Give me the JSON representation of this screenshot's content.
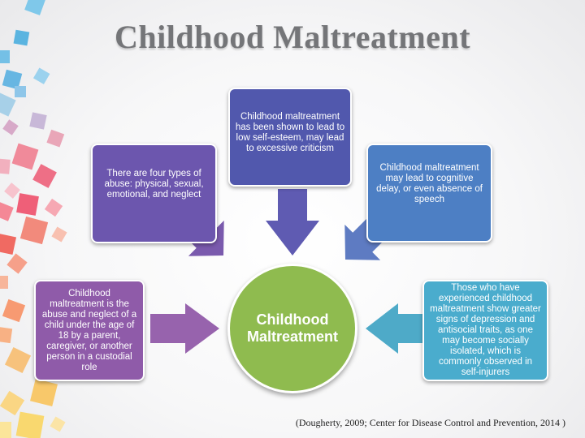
{
  "slide": {
    "title": "Childhood Maltreatment",
    "center_label": "Childhood Maltreatment",
    "boxes": [
      {
        "text": "Childhood maltreatment is the abuse and neglect of a child under the age of 18 by a parent, caregiver, or another person in a custodial role",
        "color": "#8f5ba9"
      },
      {
        "text": "There are four types of abuse: physical, sexual, emotional, and neglect",
        "color": "#6c56ae"
      },
      {
        "text": "Childhood maltreatment has been shown to lead to low self-esteem, may lead to excessive criticism",
        "color": "#5158ad"
      },
      {
        "text": "Childhood maltreatment may lead to cognitive delay, or even absence of speech",
        "color": "#4d7fc4"
      },
      {
        "text": "Those who have experienced childhood maltreatment show greater signs of  depression and antisocial traits, as one may become socially isolated, which is commonly observed in self-injurers",
        "color": "#4aaccd"
      }
    ],
    "center_color": "#8fbb4f",
    "citation": "(Dougherty,  2009; Center for Disease Control and Prevention, 2014 )"
  }
}
